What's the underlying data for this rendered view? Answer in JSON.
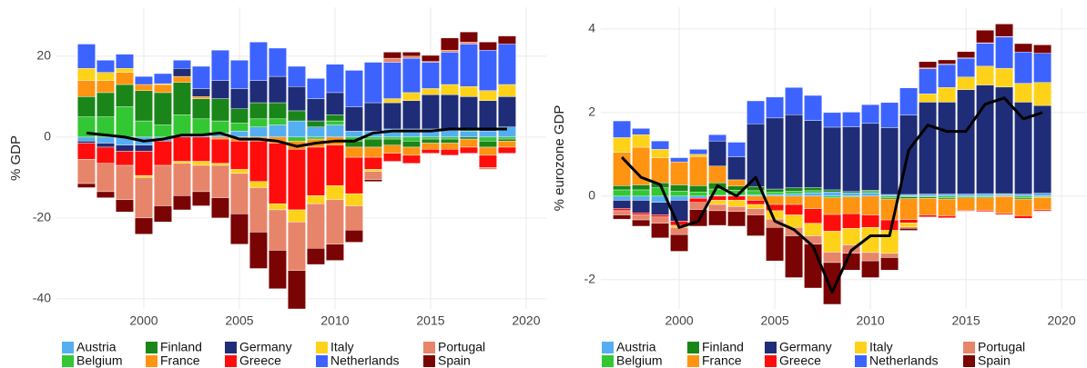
{
  "chart_data": [
    {
      "type": "bar",
      "stacked": true,
      "ylabel": "% GDP",
      "legend": "bottom",
      "grid": true,
      "x": [
        1997,
        1998,
        1999,
        2000,
        2001,
        2002,
        2003,
        2004,
        2005,
        2006,
        2007,
        2008,
        2009,
        2010,
        2011,
        2012,
        2013,
        2014,
        2015,
        2016,
        2017,
        2018,
        2019
      ],
      "xlim": [
        1995.43,
        2021.05
      ],
      "ylim": [
        -42.5,
        32.1
      ],
      "xticks": [
        2000,
        2005,
        2010,
        2015,
        2020
      ],
      "yticks": [
        -40,
        -20,
        0,
        20
      ],
      "series": [
        {
          "name": "Austria",
          "color": "#56aef2",
          "values": [
            -1,
            -1.5,
            -2,
            -2,
            -1,
            0.5,
            0.5,
            1,
            1.5,
            2.5,
            3,
            4,
            2.5,
            3,
            1.5,
            1.5,
            2,
            2,
            2,
            2,
            1.5,
            1.5,
            2.5
          ]
        },
        {
          "name": "Belgium",
          "color": "#33c733",
          "values": [
            5,
            5,
            7.5,
            4,
            3,
            5,
            4,
            3,
            2,
            2,
            1.5,
            -1,
            -0.5,
            1,
            -1,
            -0.5,
            -0.5,
            -1,
            -0.5,
            -0.5,
            0.5,
            -1,
            -0.5
          ]
        },
        {
          "name": "Finland",
          "color": "#1a861a",
          "values": [
            5,
            6,
            5.5,
            7.5,
            8,
            8,
            5,
            5.5,
            3.5,
            4,
            4,
            2.5,
            1.5,
            1.5,
            -1.5,
            -2,
            -1.5,
            -1.5,
            -1,
            -1,
            -0.5,
            -1.5,
            -0.5
          ]
        },
        {
          "name": "France",
          "color": "#ff9412",
          "values": [
            4,
            3,
            3,
            1.5,
            2,
            1.5,
            0.5,
            -0.5,
            -1,
            -1,
            -1.5,
            -2,
            -2,
            -2,
            -2.5,
            -2.5,
            -2,
            -2,
            -1.5,
            -1.5,
            -2,
            -2,
            -1.5
          ]
        },
        {
          "name": "Germany",
          "color": "#1f2d78",
          "values": [
            -0.5,
            -1,
            -1.5,
            -1.5,
            0,
            2,
            2,
            4.5,
            5,
            5.5,
            6.5,
            6,
            5.5,
            5.5,
            6,
            7,
            6.5,
            7,
            8.5,
            8.5,
            8,
            7.5,
            7.5
          ]
        },
        {
          "name": "Greece",
          "color": "#ff0d0d",
          "values": [
            -4,
            -4,
            -3.5,
            -6,
            -6,
            -6,
            -6,
            -6,
            -7,
            -10,
            -15,
            -15,
            -12,
            -10,
            -9,
            -3,
            -2,
            -2,
            -1,
            -1.5,
            -1.5,
            -3,
            -1.5
          ]
        },
        {
          "name": "Italy",
          "color": "#ffd21a",
          "values": [
            3,
            2,
            1,
            -0.5,
            0.2,
            -0.5,
            -1,
            -0.5,
            -1,
            -1.5,
            -1.5,
            -3,
            -2,
            -3.5,
            -3,
            -0.5,
            1,
            2,
            1.5,
            2.5,
            2.5,
            2.5,
            3
          ]
        },
        {
          "name": "Netherlands",
          "color": "#3d63ff",
          "values": [
            6,
            3,
            3.5,
            2,
            2.5,
            2,
            5.5,
            7.5,
            7,
            9.5,
            7,
            5,
            5,
            7,
            9,
            10,
            9,
            8.5,
            6.5,
            8,
            10.5,
            10,
            10
          ]
        },
        {
          "name": "Portugal",
          "color": "#e7856b",
          "values": [
            -6,
            -7,
            -8.5,
            -10,
            -10,
            -8,
            -6.5,
            -8,
            -10,
            -11,
            -10,
            -12,
            -11,
            -11,
            -6,
            -2,
            1,
            0.5,
            0.2,
            0.5,
            0.5,
            -0.5,
            0
          ]
        },
        {
          "name": "Spain",
          "color": "#7a0303",
          "values": [
            -1,
            -1.5,
            -3,
            -4,
            -4,
            -3.5,
            -3.5,
            -5,
            -7.5,
            -9,
            -9.5,
            -9.5,
            -4,
            -4,
            -3,
            -0.5,
            1.5,
            1,
            1.5,
            3,
            2.5,
            2,
            2
          ]
        }
      ],
      "line": {
        "color": "#000000",
        "values": [
          1,
          0.5,
          0,
          -1,
          -0.5,
          0.5,
          0.5,
          1,
          -0.5,
          -0.5,
          -1,
          -2.3,
          -1.5,
          -1,
          -1,
          1,
          1.5,
          1.5,
          1.5,
          2,
          2,
          2,
          2
        ]
      }
    },
    {
      "type": "bar",
      "stacked": true,
      "ylabel": "% eurozone GDP",
      "legend": "bottom",
      "grid": true,
      "x": [
        1997,
        1998,
        1999,
        2000,
        2001,
        2002,
        2003,
        2004,
        2005,
        2006,
        2007,
        2008,
        2009,
        2010,
        2011,
        2012,
        2013,
        2014,
        2015,
        2016,
        2017,
        2018,
        2019
      ],
      "xlim": [
        1995.9,
        2021.33
      ],
      "ylim": [
        -2.7,
        4.52
      ],
      "xticks": [
        2000,
        2005,
        2010,
        2015,
        2020
      ],
      "yticks": [
        -2,
        0,
        2,
        4
      ],
      "series": [
        {
          "name": "Austria",
          "color": "#56aef2",
          "values": [
            -0.1,
            -0.1,
            -0.15,
            -0.1,
            -0.05,
            0.02,
            0.02,
            0.03,
            0.04,
            0.06,
            0.08,
            0.1,
            0.08,
            0.08,
            0.04,
            0.04,
            0.05,
            0.05,
            0.05,
            0.06,
            0.04,
            0.05,
            0.07
          ]
        },
        {
          "name": "Belgium",
          "color": "#33c733",
          "values": [
            0.15,
            0.15,
            0.2,
            0.12,
            0.1,
            0.15,
            0.12,
            0.1,
            0.06,
            0.06,
            0.05,
            -0.04,
            -0.02,
            0.03,
            -0.04,
            -0.02,
            -0.02,
            -0.04,
            -0.02,
            -0.02,
            0.02,
            -0.04,
            -0.02
          ]
        },
        {
          "name": "Finland",
          "color": "#1a861a",
          "values": [
            0.1,
            0.12,
            0.12,
            0.15,
            0.15,
            0.15,
            0.1,
            0.1,
            0.07,
            0.08,
            0.08,
            0.05,
            0.03,
            0.03,
            -0.03,
            -0.04,
            -0.03,
            -0.03,
            -0.02,
            -0.02,
            -0.01,
            -0.03,
            -0.01
          ]
        },
        {
          "name": "France",
          "color": "#ff9412",
          "values": [
            0.8,
            0.9,
            0.6,
            0.55,
            0.7,
            0.4,
            0.15,
            -0.1,
            -0.2,
            -0.2,
            -0.3,
            -0.4,
            -0.4,
            -0.45,
            -0.5,
            -0.5,
            -0.4,
            -0.4,
            -0.3,
            -0.3,
            -0.4,
            -0.4,
            -0.3
          ]
        },
        {
          "name": "Germany",
          "color": "#1f2d78",
          "values": [
            -0.2,
            -0.3,
            -0.3,
            -0.5,
            0,
            0.6,
            0.55,
            1.5,
            1.7,
            1.75,
            1.6,
            1.5,
            1.55,
            1.6,
            1.6,
            1.9,
            2.2,
            2.2,
            2.5,
            2.6,
            2.55,
            2.2,
            2.1
          ]
        },
        {
          "name": "Greece",
          "color": "#ff0d0d",
          "values": [
            -0.05,
            -0.05,
            -0.05,
            -0.1,
            -0.1,
            -0.1,
            -0.1,
            -0.1,
            -0.15,
            -0.25,
            -0.35,
            -0.4,
            -0.35,
            -0.3,
            -0.25,
            -0.08,
            -0.05,
            -0.05,
            -0.02,
            -0.03,
            -0.03,
            -0.06,
            -0.03
          ]
        },
        {
          "name": "Italy",
          "color": "#ffd21a",
          "values": [
            0.35,
            0.3,
            0.2,
            -0.05,
            0.05,
            -0.1,
            -0.15,
            -0.1,
            -0.2,
            -0.3,
            -0.3,
            -0.5,
            -0.4,
            -0.6,
            -0.55,
            -0.1,
            0.2,
            0.35,
            0.3,
            0.45,
            0.45,
            0.45,
            0.55
          ]
        },
        {
          "name": "Netherlands",
          "color": "#3d63ff",
          "values": [
            0.4,
            0.15,
            0.2,
            0.1,
            0.12,
            0.15,
            0.35,
            0.55,
            0.5,
            0.65,
            0.6,
            0.35,
            0.35,
            0.45,
            0.6,
            0.65,
            0.6,
            0.55,
            0.45,
            0.55,
            0.75,
            0.75,
            0.7
          ]
        },
        {
          "name": "Portugal",
          "color": "#e7856b",
          "values": [
            -0.1,
            -0.12,
            -0.15,
            -0.17,
            -0.17,
            -0.15,
            -0.12,
            -0.15,
            -0.2,
            -0.2,
            -0.2,
            -0.25,
            -0.2,
            -0.2,
            -0.1,
            -0.03,
            0.02,
            0.01,
            0.01,
            0.01,
            0.01,
            -0.01,
            0
          ]
        },
        {
          "name": "Spain",
          "color": "#7a0303",
          "values": [
            -0.1,
            -0.15,
            -0.35,
            -0.4,
            -0.4,
            -0.35,
            -0.35,
            -0.5,
            -0.8,
            -1,
            -1.05,
            -1,
            -0.4,
            -0.4,
            -0.3,
            -0.05,
            0.15,
            0.1,
            0.15,
            0.3,
            0.3,
            0.2,
            0.2
          ]
        }
      ],
      "line": {
        "color": "#000000",
        "values": [
          0.93,
          0.45,
          0.28,
          -0.75,
          -0.6,
          0.25,
          0,
          0.45,
          -0.6,
          -0.8,
          -1.2,
          -2.3,
          -1.3,
          -0.95,
          -0.95,
          1.1,
          1.7,
          1.55,
          1.55,
          2.2,
          2.35,
          1.85,
          2
        ]
      }
    }
  ]
}
